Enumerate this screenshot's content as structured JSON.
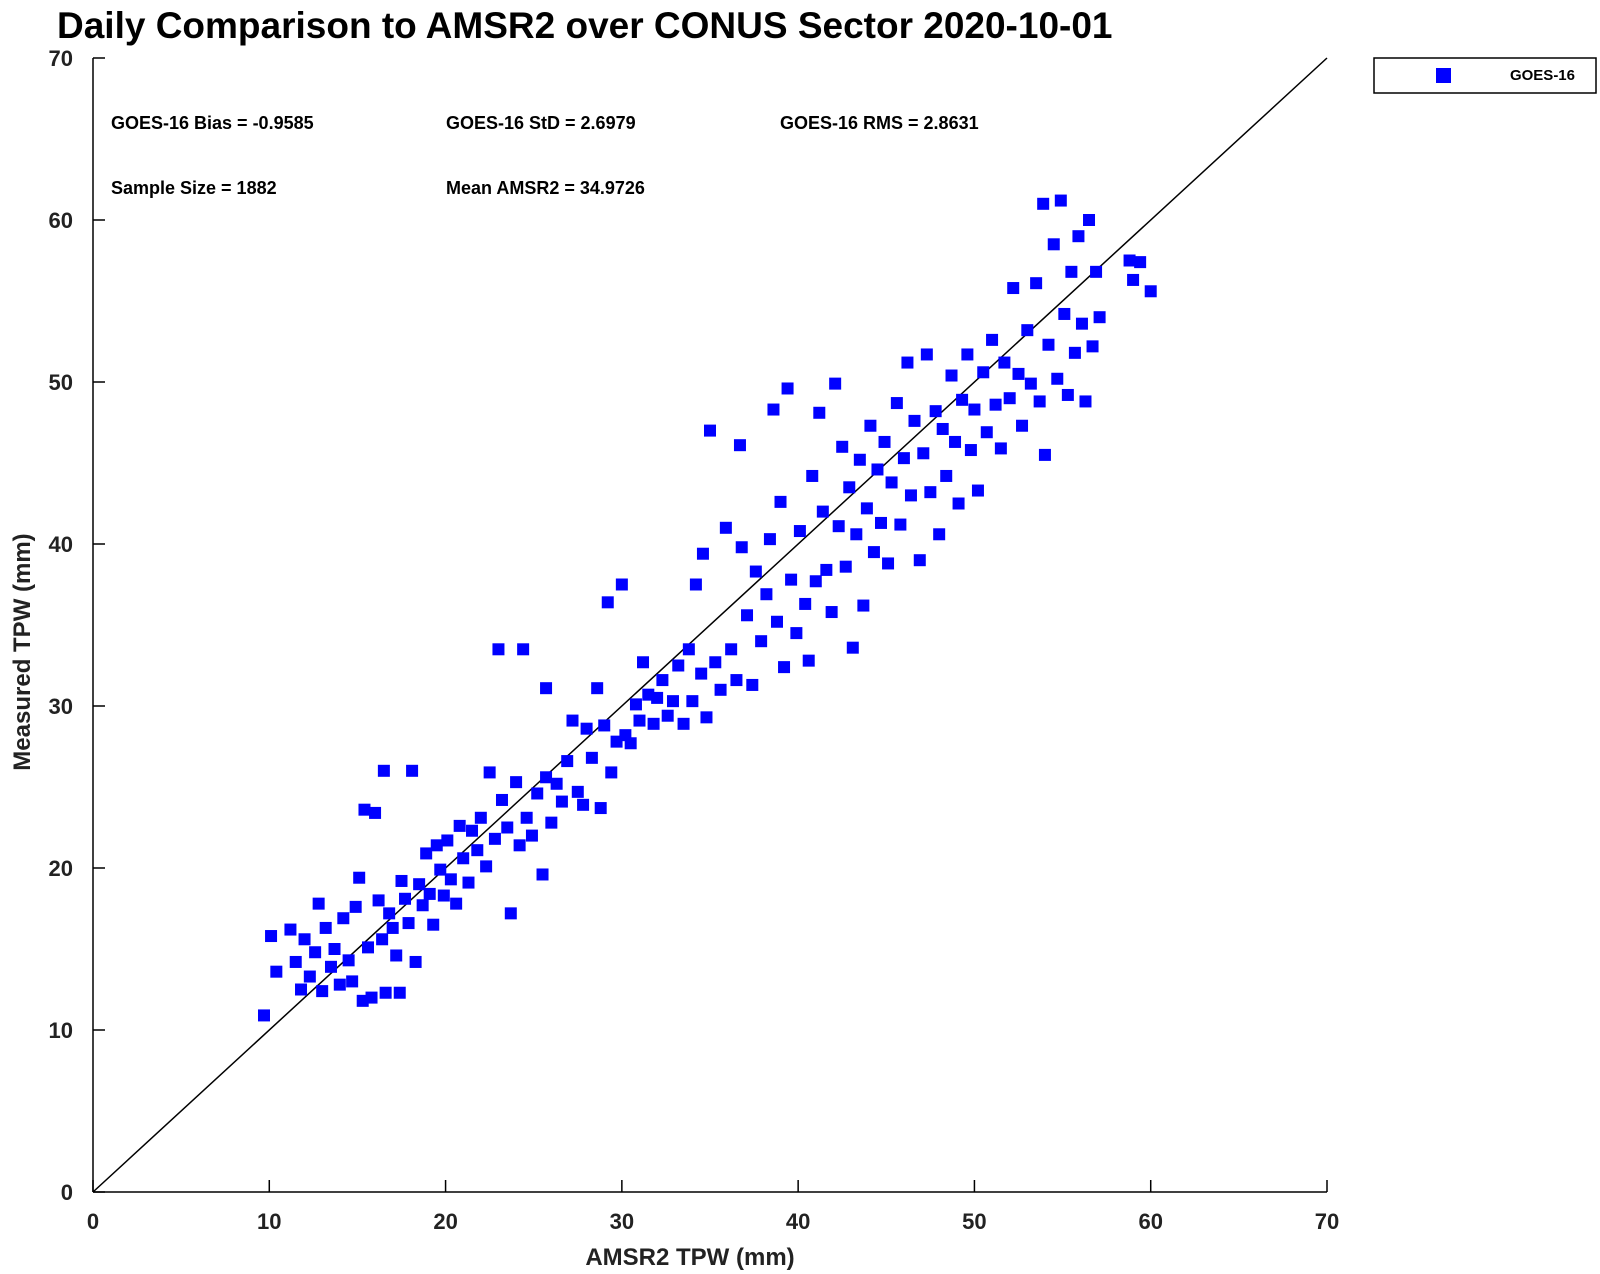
{
  "chart_data": {
    "type": "scatter",
    "title": "Daily Comparison to AMSR2 over CONUS Sector 2020-10-01",
    "xlabel": "AMSR2 TPW (mm)",
    "ylabel": "Measured TPW (mm)",
    "xlim": [
      0,
      70
    ],
    "ylim": [
      0,
      70
    ],
    "xticks": [
      "0",
      "10",
      "20",
      "30",
      "40",
      "50",
      "60",
      "70"
    ],
    "yticks": [
      "0",
      "10",
      "20",
      "30",
      "40",
      "50",
      "60",
      "70"
    ],
    "grid": false,
    "legend_position": "outside-top-right",
    "reference_line": [
      [
        0,
        0
      ],
      [
        70,
        70
      ]
    ],
    "stats": {
      "bias": "GOES-16 Bias = -0.9585",
      "std": "GOES-16 StD = 2.6979",
      "rms": "GOES-16 RMS = 2.8631",
      "sample": "Sample Size = 1882",
      "mean": "Mean AMSR2 = 34.9726"
    },
    "series": [
      {
        "name": "GOES-16",
        "color": "#0000ff",
        "marker": "square",
        "points": [
          [
            9.7,
            10.9
          ],
          [
            10.1,
            15.8
          ],
          [
            10.4,
            13.6
          ],
          [
            11.2,
            16.2
          ],
          [
            11.5,
            14.2
          ],
          [
            11.8,
            12.5
          ],
          [
            12.0,
            15.6
          ],
          [
            12.3,
            13.3
          ],
          [
            12.6,
            14.8
          ],
          [
            12.8,
            17.8
          ],
          [
            13.0,
            12.4
          ],
          [
            13.2,
            16.3
          ],
          [
            13.5,
            13.9
          ],
          [
            13.7,
            15.0
          ],
          [
            14.0,
            12.8
          ],
          [
            14.2,
            16.9
          ],
          [
            14.5,
            14.3
          ],
          [
            14.7,
            13.0
          ],
          [
            14.9,
            17.6
          ],
          [
            15.1,
            19.4
          ],
          [
            15.3,
            11.8
          ],
          [
            15.4,
            23.6
          ],
          [
            15.6,
            15.1
          ],
          [
            15.8,
            12.0
          ],
          [
            16.0,
            23.4
          ],
          [
            16.2,
            18.0
          ],
          [
            16.4,
            15.6
          ],
          [
            16.5,
            26.0
          ],
          [
            16.6,
            12.3
          ],
          [
            16.8,
            17.2
          ],
          [
            17.0,
            16.3
          ],
          [
            17.2,
            14.6
          ],
          [
            17.4,
            12.3
          ],
          [
            17.5,
            19.2
          ],
          [
            17.7,
            18.1
          ],
          [
            17.9,
            16.6
          ],
          [
            18.1,
            26.0
          ],
          [
            18.3,
            14.2
          ],
          [
            18.5,
            19.0
          ],
          [
            18.7,
            17.7
          ],
          [
            18.9,
            20.9
          ],
          [
            19.1,
            18.4
          ],
          [
            19.3,
            16.5
          ],
          [
            19.5,
            21.4
          ],
          [
            19.7,
            19.9
          ],
          [
            19.9,
            18.3
          ],
          [
            20.1,
            21.7
          ],
          [
            20.3,
            19.3
          ],
          [
            20.6,
            17.8
          ],
          [
            20.8,
            22.6
          ],
          [
            21.0,
            20.6
          ],
          [
            21.3,
            19.1
          ],
          [
            21.5,
            22.3
          ],
          [
            21.8,
            21.1
          ],
          [
            22.0,
            23.1
          ],
          [
            22.3,
            20.1
          ],
          [
            22.5,
            25.9
          ],
          [
            22.8,
            21.8
          ],
          [
            23.0,
            33.5
          ],
          [
            23.2,
            24.2
          ],
          [
            23.5,
            22.5
          ],
          [
            23.7,
            17.2
          ],
          [
            24.0,
            25.3
          ],
          [
            24.2,
            21.4
          ],
          [
            24.4,
            33.5
          ],
          [
            24.6,
            23.1
          ],
          [
            24.9,
            22.0
          ],
          [
            25.2,
            24.6
          ],
          [
            25.5,
            19.6
          ],
          [
            25.7,
            25.6
          ],
          [
            25.7,
            31.1
          ],
          [
            26.0,
            22.8
          ],
          [
            26.3,
            25.2
          ],
          [
            26.6,
            24.1
          ],
          [
            26.9,
            26.6
          ],
          [
            27.2,
            29.1
          ],
          [
            27.5,
            24.7
          ],
          [
            27.8,
            23.9
          ],
          [
            28.0,
            28.6
          ],
          [
            28.3,
            26.8
          ],
          [
            28.6,
            31.1
          ],
          [
            28.8,
            23.7
          ],
          [
            29.0,
            28.8
          ],
          [
            29.2,
            36.4
          ],
          [
            29.4,
            25.9
          ],
          [
            29.7,
            27.8
          ],
          [
            30.0,
            37.5
          ],
          [
            30.2,
            28.2
          ],
          [
            30.5,
            27.7
          ],
          [
            30.8,
            30.1
          ],
          [
            31.0,
            29.1
          ],
          [
            31.2,
            32.7
          ],
          [
            31.5,
            30.7
          ],
          [
            31.8,
            28.9
          ],
          [
            32.0,
            30.5
          ],
          [
            32.3,
            31.6
          ],
          [
            32.6,
            29.4
          ],
          [
            32.9,
            30.3
          ],
          [
            33.2,
            32.5
          ],
          [
            33.5,
            28.9
          ],
          [
            33.8,
            33.5
          ],
          [
            34.0,
            30.3
          ],
          [
            34.2,
            37.5
          ],
          [
            34.5,
            32.0
          ],
          [
            34.6,
            39.4
          ],
          [
            34.8,
            29.3
          ],
          [
            35.0,
            47.0
          ],
          [
            35.3,
            32.7
          ],
          [
            35.6,
            31.0
          ],
          [
            35.9,
            41.0
          ],
          [
            36.2,
            33.5
          ],
          [
            36.5,
            31.6
          ],
          [
            36.7,
            46.1
          ],
          [
            36.8,
            39.8
          ],
          [
            37.1,
            35.6
          ],
          [
            37.4,
            31.3
          ],
          [
            37.6,
            38.3
          ],
          [
            37.9,
            34.0
          ],
          [
            38.2,
            36.9
          ],
          [
            38.4,
            40.3
          ],
          [
            38.6,
            48.3
          ],
          [
            38.8,
            35.2
          ],
          [
            39.0,
            42.6
          ],
          [
            39.2,
            32.4
          ],
          [
            39.4,
            49.6
          ],
          [
            39.6,
            37.8
          ],
          [
            39.9,
            34.5
          ],
          [
            40.1,
            40.8
          ],
          [
            40.4,
            36.3
          ],
          [
            40.6,
            32.8
          ],
          [
            40.8,
            44.2
          ],
          [
            41.0,
            37.7
          ],
          [
            41.2,
            48.1
          ],
          [
            41.4,
            42.0
          ],
          [
            41.6,
            38.4
          ],
          [
            41.9,
            35.8
          ],
          [
            42.1,
            49.9
          ],
          [
            42.3,
            41.1
          ],
          [
            42.5,
            46.0
          ],
          [
            42.7,
            38.6
          ],
          [
            42.9,
            43.5
          ],
          [
            43.1,
            33.6
          ],
          [
            43.3,
            40.6
          ],
          [
            43.5,
            45.2
          ],
          [
            43.7,
            36.2
          ],
          [
            43.9,
            42.2
          ],
          [
            44.1,
            47.3
          ],
          [
            44.3,
            39.5
          ],
          [
            44.5,
            44.6
          ],
          [
            44.7,
            41.3
          ],
          [
            44.9,
            46.3
          ],
          [
            45.1,
            38.8
          ],
          [
            45.3,
            43.8
          ],
          [
            45.6,
            48.7
          ],
          [
            45.8,
            41.2
          ],
          [
            46.0,
            45.3
          ],
          [
            46.2,
            51.2
          ],
          [
            46.4,
            43.0
          ],
          [
            46.6,
            47.6
          ],
          [
            46.9,
            39.0
          ],
          [
            47.1,
            45.6
          ],
          [
            47.3,
            51.7
          ],
          [
            47.5,
            43.2
          ],
          [
            47.8,
            48.2
          ],
          [
            48.0,
            40.6
          ],
          [
            48.2,
            47.1
          ],
          [
            48.4,
            44.2
          ],
          [
            48.7,
            50.4
          ],
          [
            48.9,
            46.3
          ],
          [
            49.1,
            42.5
          ],
          [
            49.3,
            48.9
          ],
          [
            49.6,
            51.7
          ],
          [
            49.8,
            45.8
          ],
          [
            50.0,
            48.3
          ],
          [
            50.2,
            43.3
          ],
          [
            50.5,
            50.6
          ],
          [
            50.7,
            46.9
          ],
          [
            51.0,
            52.6
          ],
          [
            51.2,
            48.6
          ],
          [
            51.5,
            45.9
          ],
          [
            51.7,
            51.2
          ],
          [
            52.0,
            49.0
          ],
          [
            52.2,
            55.8
          ],
          [
            52.5,
            50.5
          ],
          [
            52.7,
            47.3
          ],
          [
            53.0,
            53.2
          ],
          [
            53.2,
            49.9
          ],
          [
            53.5,
            56.1
          ],
          [
            53.7,
            48.8
          ],
          [
            53.9,
            61.0
          ],
          [
            54.0,
            45.5
          ],
          [
            54.2,
            52.3
          ],
          [
            54.5,
            58.5
          ],
          [
            54.7,
            50.2
          ],
          [
            54.9,
            61.2
          ],
          [
            55.1,
            54.2
          ],
          [
            55.3,
            49.2
          ],
          [
            55.5,
            56.8
          ],
          [
            55.7,
            51.8
          ],
          [
            55.9,
            59.0
          ],
          [
            56.1,
            53.6
          ],
          [
            56.3,
            48.8
          ],
          [
            56.5,
            60.0
          ],
          [
            56.7,
            52.2
          ],
          [
            56.9,
            56.8
          ],
          [
            57.1,
            54.0
          ],
          [
            58.8,
            57.5
          ],
          [
            59.0,
            56.3
          ],
          [
            59.4,
            57.4
          ],
          [
            60.0,
            55.6
          ]
        ]
      }
    ]
  }
}
